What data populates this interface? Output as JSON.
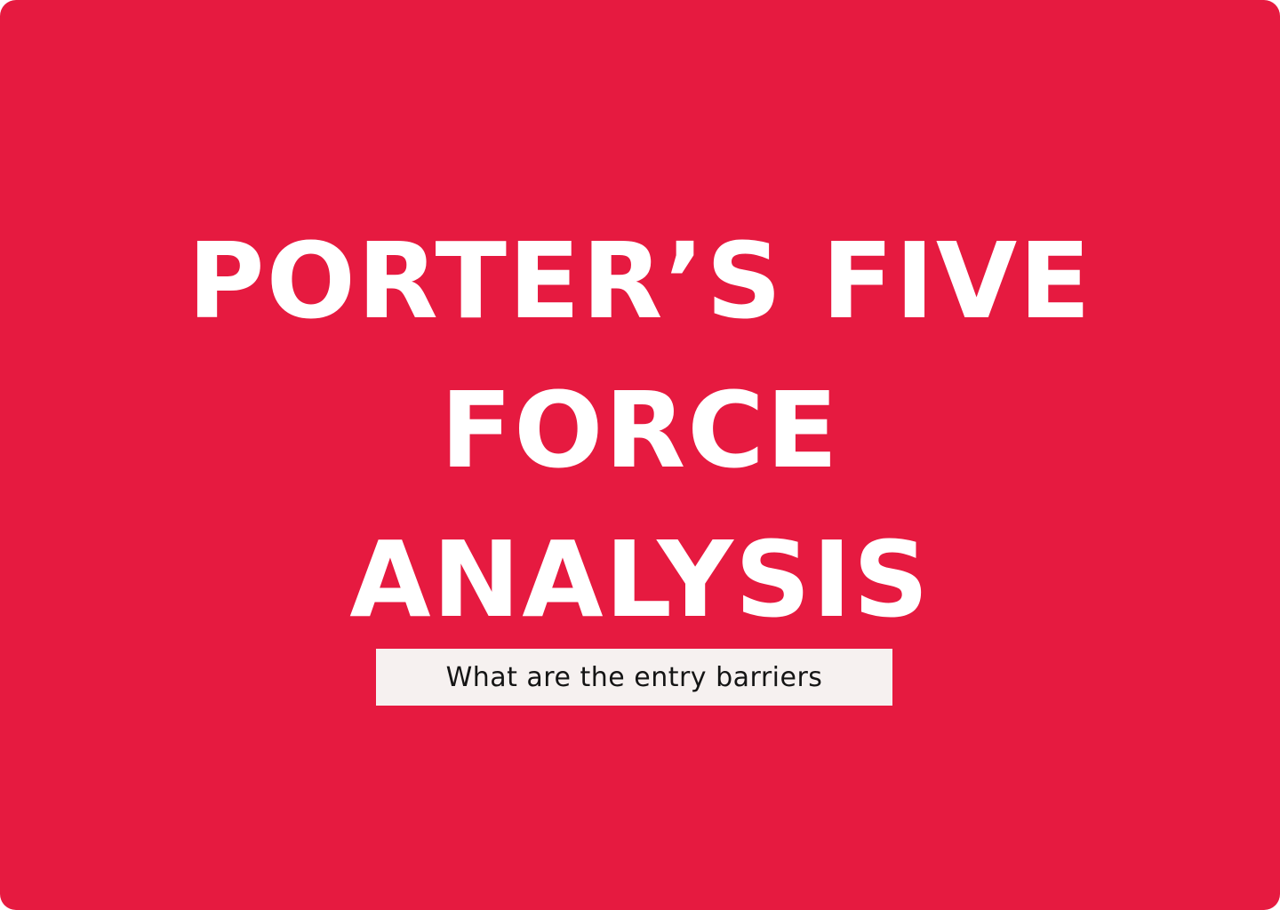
{
  "title_lines": [
    "PORTER’S FIVE",
    "FORCE",
    "ANALYSIS"
  ],
  "subtitle": "What are the entry barriers",
  "colors": {
    "background": "#e61a40",
    "title_text": "#ffffff",
    "subtitle_box": "#f6f1f0",
    "subtitle_text": "#151515"
  }
}
